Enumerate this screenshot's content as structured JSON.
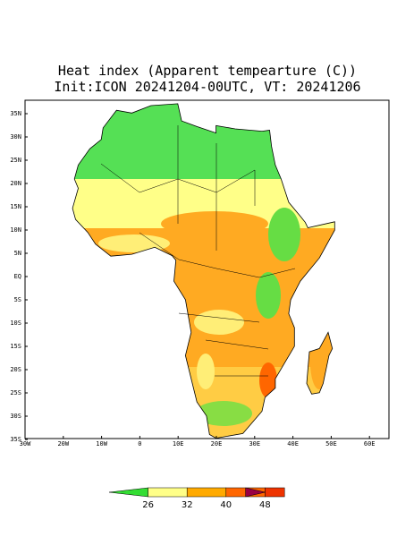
{
  "title": "Heat index (Apparent tempearture (C))",
  "subtitle": "Init:ICON 20241204-00UTC, VT: 20241206",
  "lat_labels": [
    "35N",
    "30N",
    "25N",
    "20N",
    "15N",
    "10N",
    "5N",
    "EQ",
    "5S",
    "10S",
    "15S",
    "20S",
    "25S",
    "30S",
    "35S"
  ],
  "lon_labels": [
    "30W",
    "20W",
    "10W",
    "0",
    "10E",
    "20E",
    "30E",
    "40E",
    "50E",
    "60E"
  ],
  "colorbar": {
    "labels": [
      26,
      32,
      40,
      48
    ],
    "colors": [
      "#33dd33",
      "#ffff88",
      "#ffaa00",
      "#ff6600",
      "#ee3300",
      "#990044"
    ]
  }
}
